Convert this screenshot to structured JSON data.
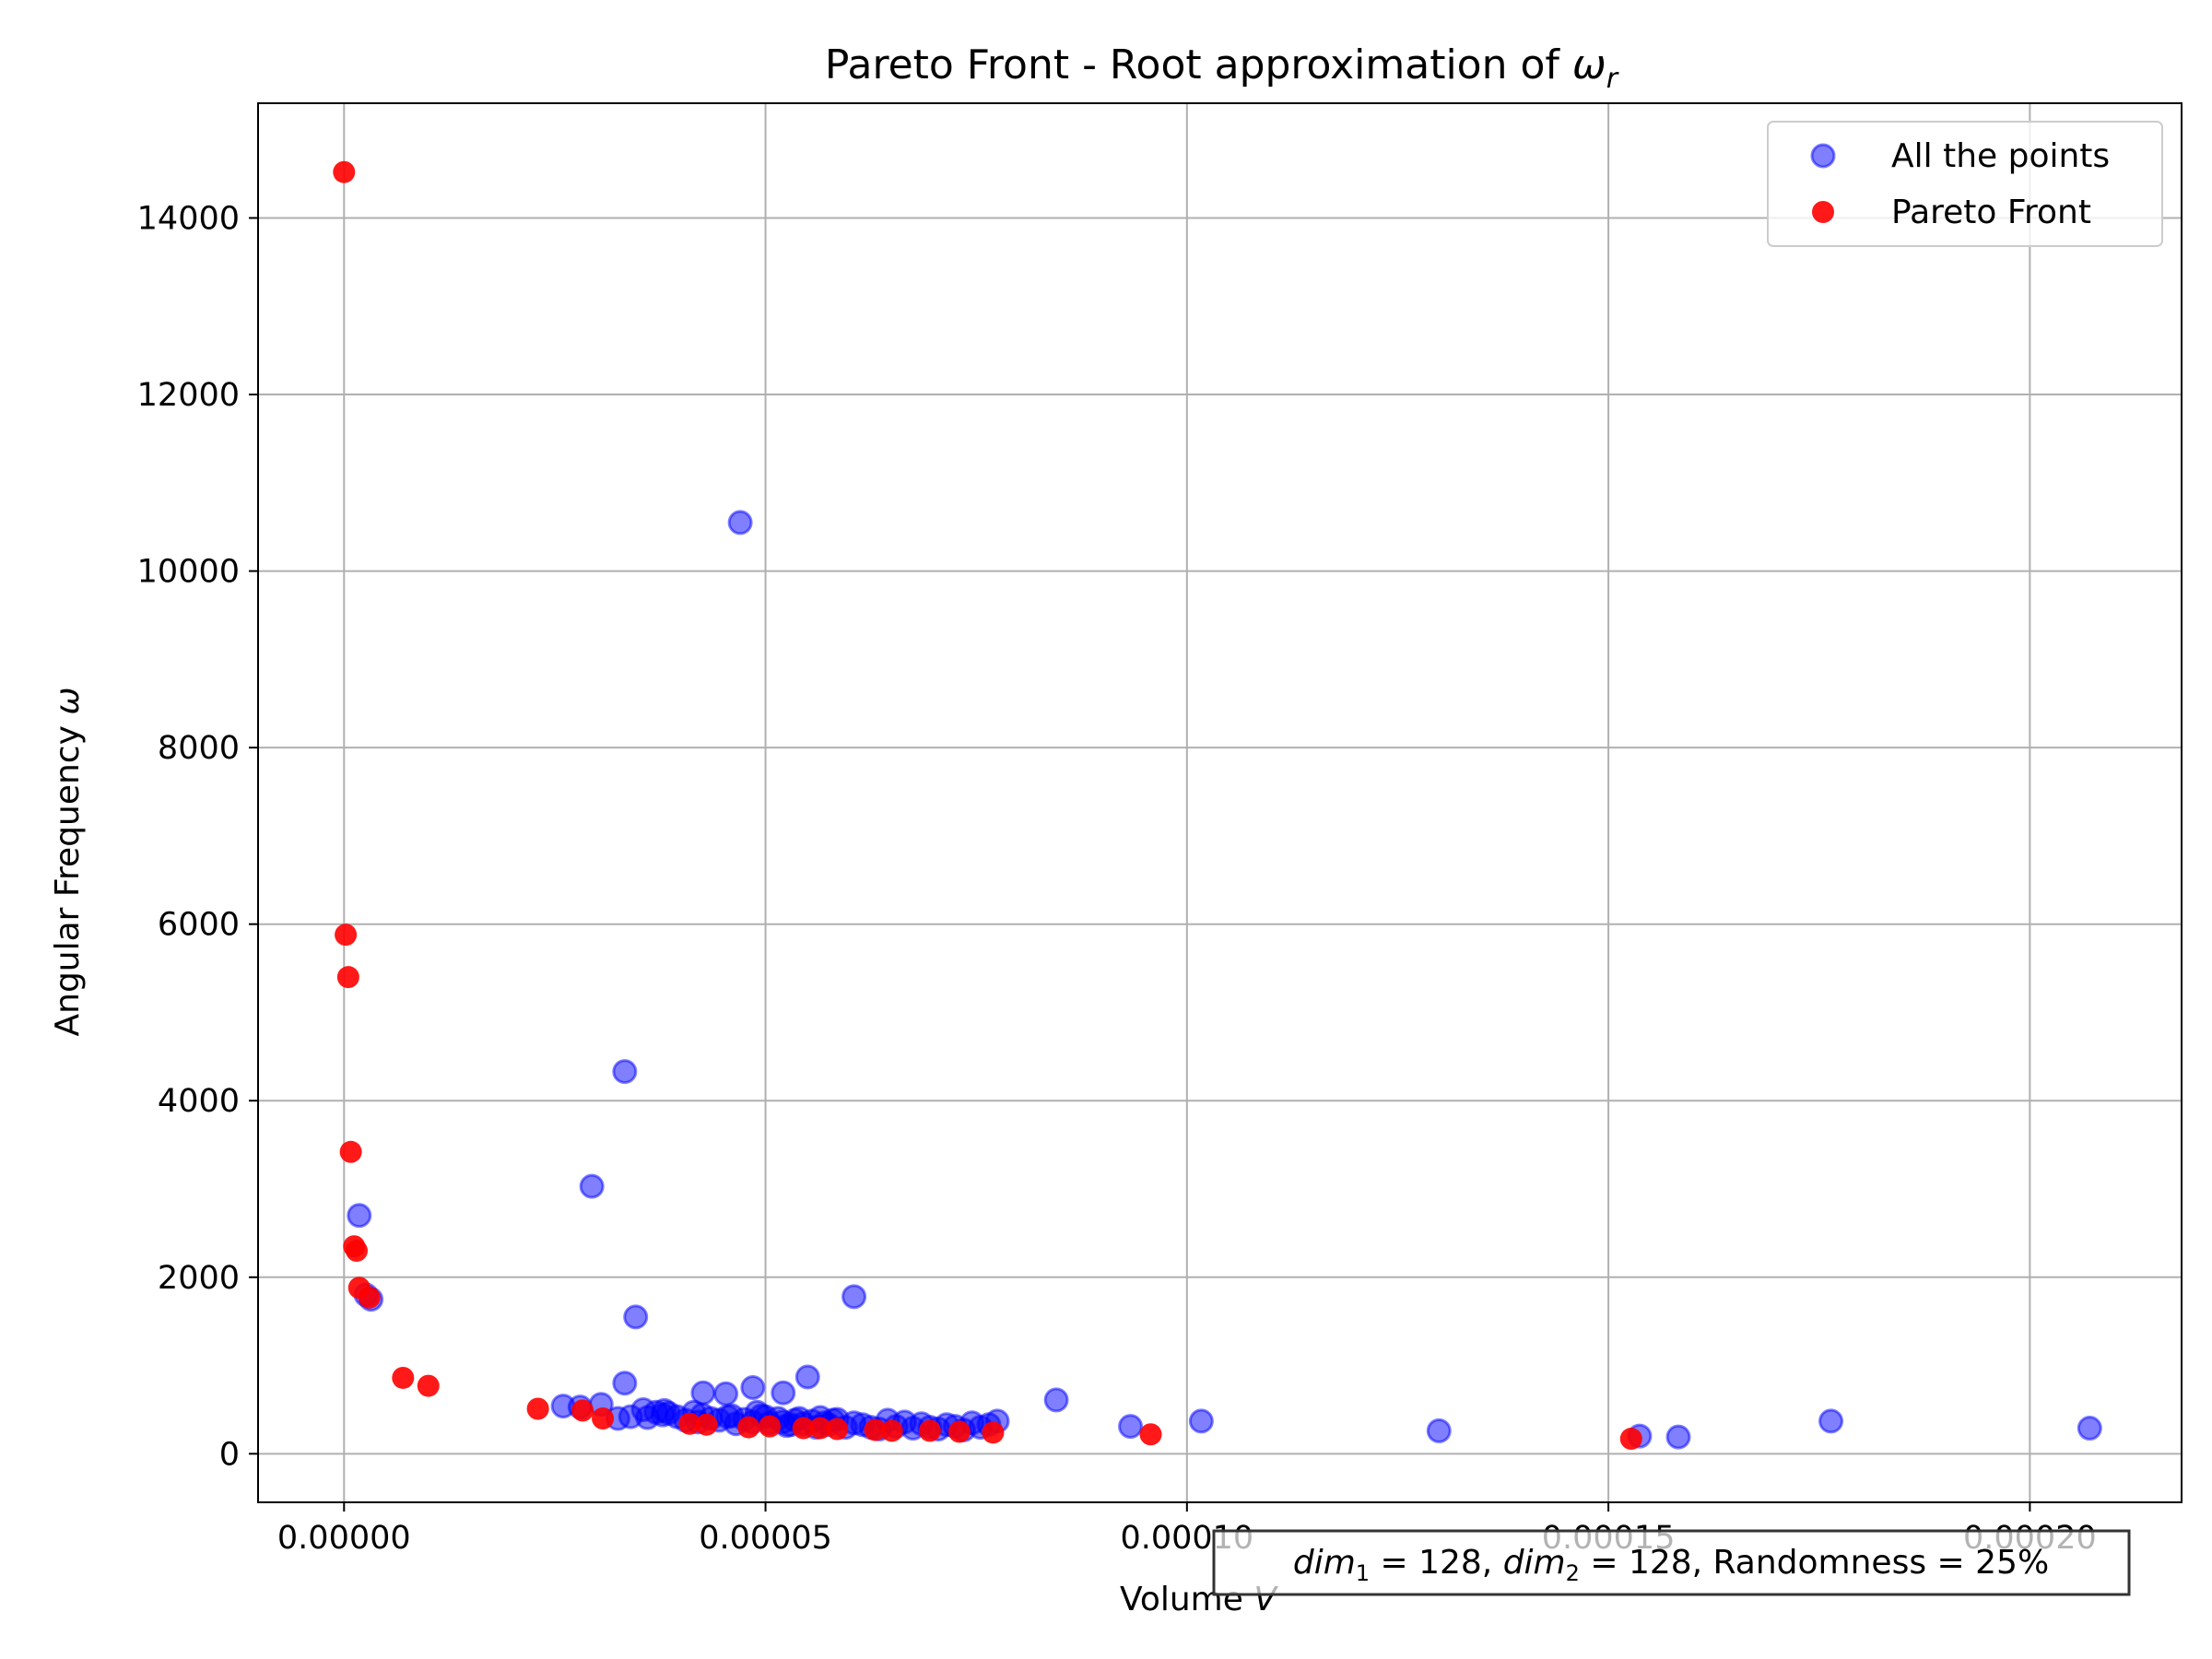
{
  "chart_data": {
    "type": "scatter",
    "title": "Pareto Front - Root approximation of ",
    "title_symbol": "ω",
    "title_subscript": "r",
    "xlabel": "Volume ",
    "xlabel_symbol": "V",
    "ylabel": "Angular Frequency ",
    "ylabel_symbol": "ω",
    "xlim": [
      -1.02e-05,
      0.000218
    ],
    "ylim": [
      -550,
      15300
    ],
    "x_ticks": [
      0,
      5e-05,
      0.0001,
      0.00015,
      0.0002
    ],
    "x_tick_labels": [
      "0.00000",
      "0.00005",
      "0.00010",
      "0.00015",
      "0.00020"
    ],
    "y_ticks": [
      0,
      2000,
      4000,
      6000,
      8000,
      10000,
      12000,
      14000
    ],
    "y_tick_labels": [
      "0",
      "2000",
      "4000",
      "6000",
      "8000",
      "10000",
      "12000",
      "14000"
    ],
    "grid": true,
    "legend_position": "top-right",
    "annotation": {
      "dim1_sym": "dim",
      "dim1_sub": "1",
      "dim1_text": " = 128, ",
      "dim2_sym": "dim",
      "dim2_sub": "2",
      "dim2_text": " = 128, Randomness = 25%"
    },
    "series": [
      {
        "name": "All the points",
        "color": "#0000ff",
        "alpha": 0.5,
        "points": [
          [
            1.8e-06,
            2700
          ],
          [
            3.2e-06,
            1750
          ],
          [
            2.6e-06,
            1800
          ],
          [
            3.33e-05,
            4330
          ],
          [
            2.94e-05,
            3030
          ],
          [
            4.7e-05,
            10550
          ],
          [
            3.46e-05,
            1550
          ],
          [
            6.05e-05,
            1780
          ],
          [
            3.33e-05,
            800
          ],
          [
            5.5e-05,
            870
          ],
          [
            4.26e-05,
            690
          ],
          [
            4.53e-05,
            680
          ],
          [
            4.85e-05,
            750
          ],
          [
            5.21e-05,
            690
          ],
          [
            8.45e-05,
            610
          ],
          [
            9.33e-05,
            310
          ],
          [
            0.0001017,
            370
          ],
          [
            0.0001299,
            260
          ],
          [
            0.0001537,
            200
          ],
          [
            0.0001583,
            190
          ],
          [
            0.0001764,
            370
          ],
          [
            0.0002071,
            290
          ],
          [
            2.6e-05,
            540
          ],
          [
            2.8e-05,
            530
          ],
          [
            3.05e-05,
            560
          ],
          [
            3.25e-05,
            400
          ],
          [
            3.4e-05,
            420
          ],
          [
            3.55e-05,
            500
          ],
          [
            3.6e-05,
            410
          ],
          [
            3.7e-05,
            470
          ],
          [
            3.78e-05,
            440
          ],
          [
            3.85e-05,
            460
          ],
          [
            3.95e-05,
            420
          ],
          [
            4.05e-05,
            380
          ],
          [
            4.15e-05,
            470
          ],
          [
            4.25e-05,
            440
          ],
          [
            4.35e-05,
            400
          ],
          [
            4.45e-05,
            380
          ],
          [
            4.55e-05,
            420
          ],
          [
            4.65e-05,
            340
          ],
          [
            4.75e-05,
            390
          ],
          [
            4.85e-05,
            360
          ],
          [
            4.95e-05,
            430
          ],
          [
            5.05e-05,
            350
          ],
          [
            5.15e-05,
            400
          ],
          [
            5.25e-05,
            320
          ],
          [
            5.35e-05,
            380
          ],
          [
            5.45e-05,
            340
          ],
          [
            5.55e-05,
            370
          ],
          [
            5.65e-05,
            410
          ],
          [
            5.75e-05,
            330
          ],
          [
            5.85e-05,
            390
          ],
          [
            5.95e-05,
            300
          ],
          [
            6.05e-05,
            350
          ],
          [
            6.15e-05,
            330
          ],
          [
            6.25e-05,
            300
          ],
          [
            6.35e-05,
            280
          ],
          [
            6.45e-05,
            380
          ],
          [
            6.55e-05,
            310
          ],
          [
            6.65e-05,
            360
          ],
          [
            6.75e-05,
            290
          ],
          [
            6.85e-05,
            340
          ],
          [
            6.95e-05,
            300
          ],
          [
            7.05e-05,
            280
          ],
          [
            7.15e-05,
            330
          ],
          [
            7.25e-05,
            310
          ],
          [
            7.35e-05,
            270
          ],
          [
            7.45e-05,
            350
          ],
          [
            7.55e-05,
            300
          ],
          [
            7.65e-05,
            330
          ],
          [
            7.75e-05,
            370
          ],
          [
            5e-05,
            420
          ],
          [
            5.2e-05,
            360
          ],
          [
            5.4e-05,
            400
          ],
          [
            5.6e-05,
            300
          ],
          [
            5.8e-05,
            380
          ],
          [
            3.8e-05,
            490
          ],
          [
            4.2e-05,
            360
          ],
          [
            4.6e-05,
            430
          ],
          [
            4.9e-05,
            470
          ],
          [
            5.3e-05,
            330
          ],
          [
            5.7e-05,
            350
          ]
        ]
      },
      {
        "name": "Pareto Front",
        "color": "#ff0000",
        "alpha": 0.9,
        "points": [
          [
            0.0,
            14520
          ],
          [
            2e-07,
            5880
          ],
          [
            5e-07,
            5400
          ],
          [
            8e-07,
            3420
          ],
          [
            1.2e-06,
            2350
          ],
          [
            1.5e-06,
            2300
          ],
          [
            1.8e-06,
            1880
          ],
          [
            3e-06,
            1770
          ],
          [
            7e-06,
            860
          ],
          [
            1e-05,
            770
          ],
          [
            2.3e-05,
            510
          ],
          [
            2.83e-05,
            490
          ],
          [
            3.07e-05,
            400
          ],
          [
            4.1e-05,
            340
          ],
          [
            4.3e-05,
            330
          ],
          [
            4.8e-05,
            300
          ],
          [
            5.05e-05,
            310
          ],
          [
            5.45e-05,
            290
          ],
          [
            5.65e-05,
            290
          ],
          [
            5.85e-05,
            280
          ],
          [
            6.3e-05,
            270
          ],
          [
            6.5e-05,
            260
          ],
          [
            6.95e-05,
            260
          ],
          [
            7.3e-05,
            250
          ],
          [
            7.7e-05,
            240
          ],
          [
            9.57e-05,
            220
          ],
          [
            0.0001527,
            170
          ]
        ]
      }
    ]
  }
}
